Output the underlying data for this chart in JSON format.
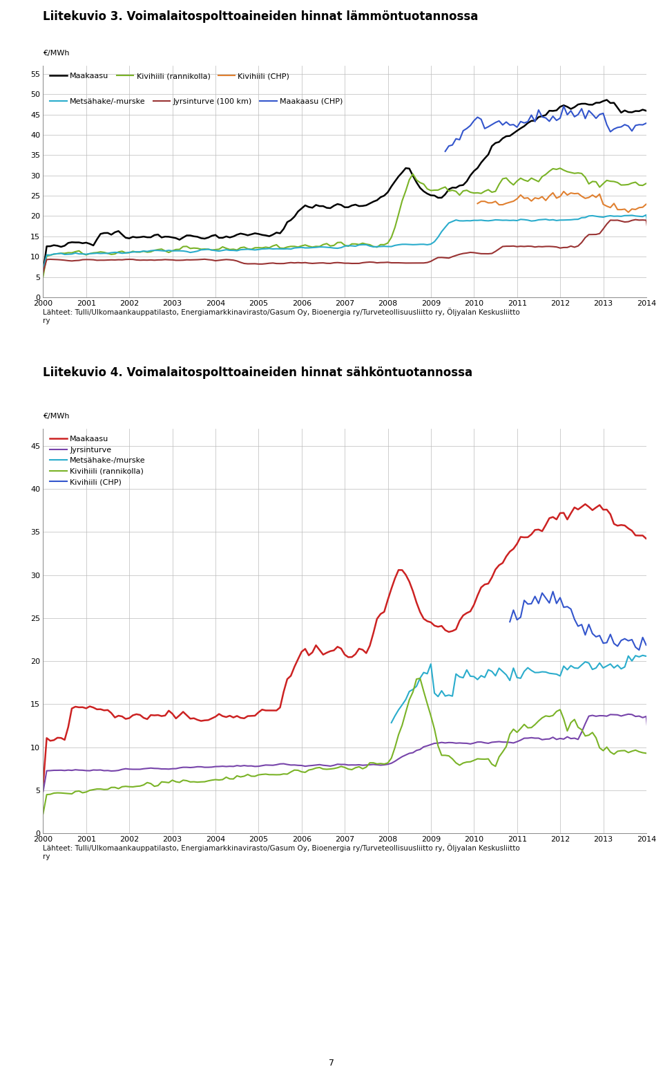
{
  "fig1": {
    "title": "Liitekuvio 3. Voimalaitospolttoaineiden hinnat lämmöntuotannossa",
    "ylabel": "€/MWh",
    "ylim": [
      0,
      57
    ],
    "yticks": [
      0,
      5,
      10,
      15,
      20,
      25,
      30,
      35,
      40,
      45,
      50,
      55
    ],
    "xlim": [
      2000,
      2014
    ],
    "xticks": [
      2000,
      2001,
      2002,
      2003,
      2004,
      2005,
      2006,
      2007,
      2008,
      2009,
      2010,
      2011,
      2012,
      2013,
      2014
    ],
    "legend_row1": [
      {
        "label": "Maakaasu",
        "color": "#000000",
        "lw": 1.8
      },
      {
        "label": "Kivihiili (rannikolla)",
        "color": "#7ab327",
        "lw": 1.5
      },
      {
        "label": "Kivihiili (CHP)",
        "color": "#e08030",
        "lw": 1.5
      }
    ],
    "legend_row2": [
      {
        "label": "Metsähake/-murske",
        "color": "#2aaccc",
        "lw": 1.5
      },
      {
        "label": "Jyrsinturve (100 km)",
        "color": "#993333",
        "lw": 1.5
      },
      {
        "label": "Maakaasu (CHP)",
        "color": "#3355cc",
        "lw": 1.5
      }
    ],
    "source_text": "Lähteet: Tulli/Ulkomaankauppatilasto, Energiamarkkinavirasto/Gasum Oy, Bioenergia ry/Turveteollisuusliitto ry, Öljyalan Keskusliitto\nry"
  },
  "fig2": {
    "title": "Liitekuvio 4. Voimalaitospolttoaineiden hinnat sähköntuotannossa",
    "ylabel": "€/MWh",
    "ylim": [
      0,
      47
    ],
    "yticks": [
      0,
      5,
      10,
      15,
      20,
      25,
      30,
      35,
      40,
      45
    ],
    "xlim": [
      2000,
      2014
    ],
    "xticks": [
      2000,
      2001,
      2002,
      2003,
      2004,
      2005,
      2006,
      2007,
      2008,
      2009,
      2010,
      2011,
      2012,
      2013,
      2014
    ],
    "legend_items": [
      {
        "label": "Maakaasu",
        "color": "#cc2222",
        "lw": 1.8
      },
      {
        "label": "Jyrsinturve",
        "color": "#7744aa",
        "lw": 1.5
      },
      {
        "label": "Metsähake-/murske",
        "color": "#2aaccc",
        "lw": 1.5
      },
      {
        "label": "Kivihiili (rannikolla)",
        "color": "#7ab327",
        "lw": 1.5
      },
      {
        "label": "Kivihiili (CHP)",
        "color": "#3355cc",
        "lw": 1.5
      }
    ],
    "source_text": "Lähteet: Tulli/Ulkomaankauppatilasto, Energiamarkkinavirasto/Gasum Oy, Bioenergia ry/Turveteollisuusliitto ry, Öljyalan Keskusliitto\nry"
  },
  "page_number": "7"
}
